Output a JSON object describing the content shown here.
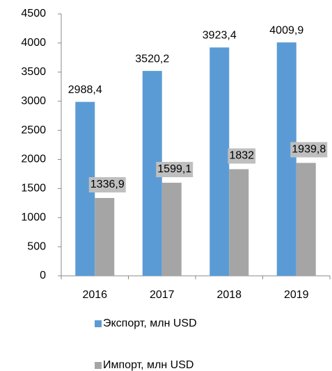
{
  "chart_data": {
    "type": "bar",
    "categories": [
      "2016",
      "2017",
      "2018",
      "2019"
    ],
    "series": [
      {
        "name": "Экспорт, млн USD",
        "color": "#5b9bd5",
        "values": [
          2988.4,
          3520.2,
          3923.4,
          4009.9
        ],
        "value_labels": [
          "2988,4",
          "3520,2",
          "3923,4",
          "4009,9"
        ]
      },
      {
        "name": "Импорт, млн USD",
        "color": "#a5a5a5",
        "values": [
          1336.9,
          1599.1,
          1832,
          1939.8
        ],
        "value_labels": [
          "1336,9",
          "1599,1",
          "1832",
          "1939,8"
        ]
      }
    ],
    "ylim": [
      0,
      4500
    ],
    "yticks": [
      0,
      500,
      1000,
      1500,
      2000,
      2500,
      3000,
      3500,
      4000,
      4500
    ],
    "grid": false,
    "legend": "bottom"
  }
}
